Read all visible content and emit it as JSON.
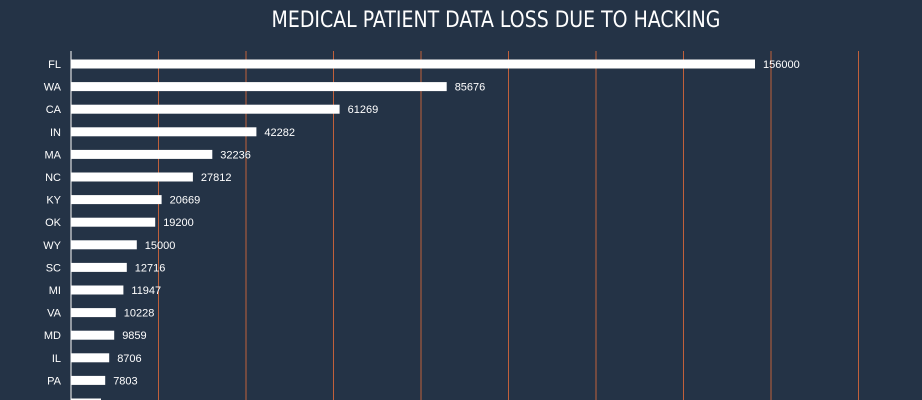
{
  "chart_data": {
    "type": "bar",
    "orientation": "horizontal",
    "title": "MEDICAL PATIENT DATA LOSS DUE TO HACKING",
    "xlabel": "",
    "ylabel": "",
    "xlim": [
      0,
      180000
    ],
    "grid": true,
    "categories": [
      "FL",
      "WA",
      "CA",
      "IN",
      "MA",
      "NC",
      "KY",
      "OK",
      "WY",
      "SC",
      "MI",
      "VA",
      "MD",
      "IL",
      "PA"
    ],
    "values": [
      156000,
      85676,
      61269,
      42282,
      32236,
      27812,
      20669,
      19200,
      15000,
      12716,
      11947,
      10228,
      9859,
      8706,
      7803
    ],
    "colors": {
      "background": "#243346",
      "bar": "#ffffff",
      "grid": "#c0603b",
      "text": "#ffffff"
    }
  }
}
